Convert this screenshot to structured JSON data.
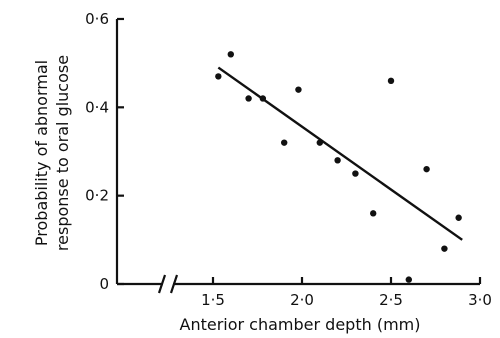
{
  "chart_data": {
    "type": "scatter",
    "title": "",
    "xlabel": "Anterior chamber depth (mm)",
    "ylabel_line1": "Probability of abnormal",
    "ylabel_line2": "response to oral glucose",
    "xlim": [
      1.5,
      3.0
    ],
    "ylim": [
      0,
      0.6
    ],
    "x_ticks": [
      {
        "value": 1.5,
        "label": "1·5"
      },
      {
        "value": 2.0,
        "label": "2·0"
      },
      {
        "value": 2.5,
        "label": "2·5"
      },
      {
        "value": 3.0,
        "label": "3·0"
      }
    ],
    "y_ticks": [
      {
        "value": 0,
        "label": "0"
      },
      {
        "value": 0.2,
        "label": "0·2"
      },
      {
        "value": 0.4,
        "label": "0·4"
      },
      {
        "value": 0.6,
        "label": "0·6"
      }
    ],
    "x_axis_break": true,
    "grid": false,
    "points": [
      {
        "x": 1.53,
        "y": 0.47
      },
      {
        "x": 1.6,
        "y": 0.52
      },
      {
        "x": 1.7,
        "y": 0.42
      },
      {
        "x": 1.78,
        "y": 0.42
      },
      {
        "x": 1.9,
        "y": 0.32
      },
      {
        "x": 1.98,
        "y": 0.44
      },
      {
        "x": 2.1,
        "y": 0.32
      },
      {
        "x": 2.2,
        "y": 0.28
      },
      {
        "x": 2.3,
        "y": 0.25
      },
      {
        "x": 2.4,
        "y": 0.16
      },
      {
        "x": 2.5,
        "y": 0.46
      },
      {
        "x": 2.6,
        "y": 0.01
      },
      {
        "x": 2.7,
        "y": 0.26
      },
      {
        "x": 2.8,
        "y": 0.08
      },
      {
        "x": 2.88,
        "y": 0.15
      }
    ],
    "fit_line": {
      "x": [
        1.53,
        2.9
      ],
      "y": [
        0.49,
        0.1
      ]
    }
  }
}
